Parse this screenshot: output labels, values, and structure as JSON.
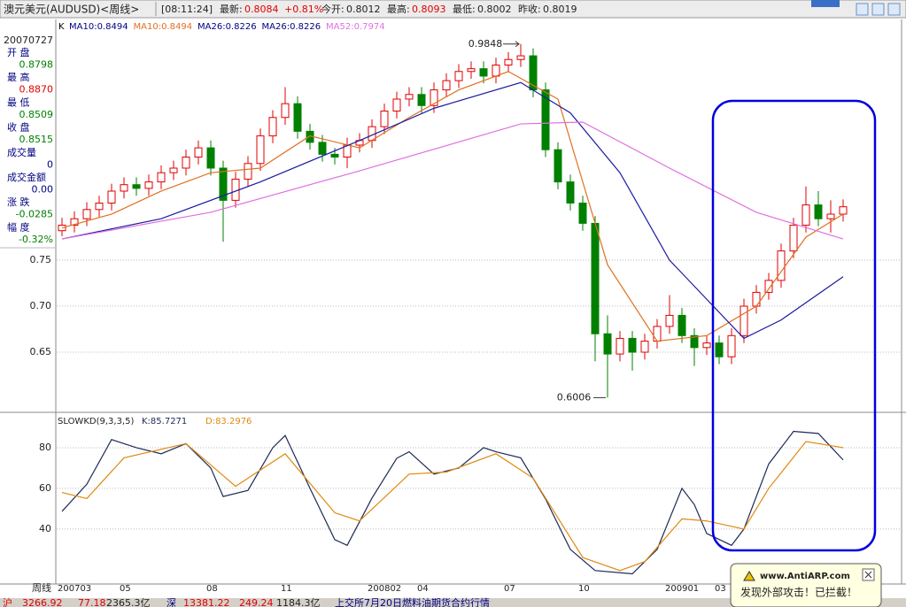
{
  "header": {
    "title": "澳元美元(AUDUSD)<周线>",
    "time": "[08:11:24]",
    "last_label": "最新:",
    "last": "0.8084",
    "change": "+0.81%",
    "open_label": "今开:",
    "open": "0.8012",
    "high_label": "最高:",
    "high": "0.8093",
    "low_label": "最低:",
    "low": "0.8002",
    "prev_label": "昨收:",
    "prev": "0.8019"
  },
  "info": {
    "date": "20070727",
    "rows": [
      {
        "label": "开 盘",
        "value": "0.8798",
        "color": "#008000"
      },
      {
        "label": "最 高",
        "value": "0.8870",
        "color": "#e00000"
      },
      {
        "label": "最 低",
        "value": "0.8509",
        "color": "#008000"
      },
      {
        "label": "收 盘",
        "value": "0.8515",
        "color": "#008000"
      },
      {
        "label": "成交量",
        "value": "0",
        "color": "#000080"
      },
      {
        "label": "成交金额",
        "value": "0.00",
        "color": "#000080"
      },
      {
        "label": "涨 跌",
        "value": "-0.0285",
        "color": "#008000"
      },
      {
        "label": "幅 度",
        "value": "-0.32%",
        "color": "#008000"
      }
    ]
  },
  "chart_data": [
    {
      "type": "candlestick",
      "legend": [
        "K",
        "MA10:0.8494",
        "MA10:0.8494",
        "MA26:0.8226",
        "MA26:0.8226",
        "MA52:0.7974"
      ],
      "legend_colors": [
        "#000000",
        "#000080",
        "#e07020",
        "#000080",
        "#000080",
        "#e070e0"
      ],
      "ylim": [
        0.5856,
        1.0115
      ],
      "yticks": [
        {
          "value": 0.75,
          "label": "0.75"
        },
        {
          "value": 0.7,
          "label": "0.70"
        },
        {
          "value": 0.65,
          "label": "0.65"
        }
      ],
      "grid": true,
      "up_color": "#e00000",
      "down_color": "#008000",
      "x_axis_label": "周线",
      "categories": [
        "200703",
        null,
        null,
        null,
        null,
        "05",
        null,
        null,
        null,
        null,
        null,
        null,
        "08",
        null,
        null,
        null,
        null,
        null,
        "11",
        null,
        null,
        null,
        null,
        null,
        null,
        "200802",
        null,
        null,
        null,
        "04",
        null,
        null,
        null,
        null,
        null,
        null,
        "07",
        null,
        null,
        null,
        null,
        null,
        "10",
        null,
        null,
        null,
        null,
        null,
        null,
        "200901",
        null,
        null,
        null,
        "03",
        null,
        null,
        null,
        null,
        null,
        null,
        null,
        null,
        null,
        null
      ],
      "candles": [
        [
          0.782,
          0.796,
          0.776,
          0.788
        ],
        [
          0.788,
          0.803,
          0.78,
          0.795
        ],
        [
          0.795,
          0.813,
          0.787,
          0.805
        ],
        [
          0.805,
          0.82,
          0.797,
          0.812
        ],
        [
          0.812,
          0.833,
          0.804,
          0.825
        ],
        [
          0.825,
          0.84,
          0.817,
          0.832
        ],
        [
          0.832,
          0.84,
          0.82,
          0.828
        ],
        [
          0.828,
          0.843,
          0.82,
          0.835
        ],
        [
          0.835,
          0.853,
          0.827,
          0.845
        ],
        [
          0.845,
          0.858,
          0.837,
          0.85
        ],
        [
          0.85,
          0.87,
          0.842,
          0.862
        ],
        [
          0.862,
          0.88,
          0.854,
          0.872
        ],
        [
          0.872,
          0.88,
          0.842,
          0.85
        ],
        [
          0.85,
          0.858,
          0.77,
          0.815
        ],
        [
          0.815,
          0.846,
          0.807,
          0.838
        ],
        [
          0.838,
          0.863,
          0.83,
          0.855
        ],
        [
          0.855,
          0.893,
          0.847,
          0.885
        ],
        [
          0.885,
          0.913,
          0.877,
          0.905
        ],
        [
          0.905,
          0.938,
          0.897,
          0.92
        ],
        [
          0.92,
          0.928,
          0.882,
          0.89
        ],
        [
          0.89,
          0.898,
          0.87,
          0.878
        ],
        [
          0.878,
          0.886,
          0.857,
          0.865
        ],
        [
          0.865,
          0.872,
          0.854,
          0.862
        ],
        [
          0.862,
          0.883,
          0.85,
          0.875
        ],
        [
          0.875,
          0.888,
          0.867,
          0.88
        ],
        [
          0.88,
          0.903,
          0.872,
          0.895
        ],
        [
          0.895,
          0.92,
          0.887,
          0.912
        ],
        [
          0.912,
          0.933,
          0.904,
          0.925
        ],
        [
          0.925,
          0.938,
          0.917,
          0.93
        ],
        [
          0.93,
          0.938,
          0.91,
          0.918
        ],
        [
          0.918,
          0.943,
          0.91,
          0.935
        ],
        [
          0.935,
          0.953,
          0.927,
          0.945
        ],
        [
          0.945,
          0.963,
          0.937,
          0.955
        ],
        [
          0.955,
          0.966,
          0.947,
          0.958
        ],
        [
          0.958,
          0.966,
          0.942,
          0.95
        ],
        [
          0.95,
          0.97,
          0.942,
          0.962
        ],
        [
          0.962,
          0.976,
          0.954,
          0.968
        ],
        [
          0.968,
          0.9848,
          0.96,
          0.972
        ],
        [
          0.972,
          0.98,
          0.927,
          0.935
        ],
        [
          0.935,
          0.943,
          0.862,
          0.87
        ],
        [
          0.87,
          0.878,
          0.827,
          0.835
        ],
        [
          0.835,
          0.843,
          0.804,
          0.812
        ],
        [
          0.812,
          0.82,
          0.782,
          0.79
        ],
        [
          0.79,
          0.798,
          0.64,
          0.67
        ],
        [
          0.67,
          0.69,
          0.6006,
          0.648
        ],
        [
          0.648,
          0.673,
          0.64,
          0.665
        ],
        [
          0.665,
          0.673,
          0.63,
          0.65
        ],
        [
          0.65,
          0.67,
          0.642,
          0.662
        ],
        [
          0.662,
          0.686,
          0.654,
          0.678
        ],
        [
          0.678,
          0.712,
          0.67,
          0.69
        ],
        [
          0.69,
          0.698,
          0.66,
          0.668
        ],
        [
          0.668,
          0.676,
          0.635,
          0.655
        ],
        [
          0.655,
          0.668,
          0.647,
          0.66
        ],
        [
          0.66,
          0.668,
          0.637,
          0.645
        ],
        [
          0.645,
          0.676,
          0.637,
          0.668
        ],
        [
          0.668,
          0.708,
          0.66,
          0.7
        ],
        [
          0.7,
          0.723,
          0.692,
          0.715
        ],
        [
          0.715,
          0.736,
          0.707,
          0.728
        ],
        [
          0.728,
          0.768,
          0.72,
          0.76
        ],
        [
          0.76,
          0.796,
          0.752,
          0.788
        ],
        [
          0.788,
          0.83,
          0.78,
          0.81
        ],
        [
          0.81,
          0.825,
          0.787,
          0.795
        ],
        [
          0.795,
          0.815,
          0.78,
          0.8
        ],
        [
          0.8,
          0.816,
          0.792,
          0.808
        ]
      ],
      "series": [
        {
          "name": "MA10",
          "color": "#e07020",
          "x": [
            0,
            4,
            8,
            12,
            16,
            20,
            24,
            28,
            32,
            36,
            40,
            44,
            48,
            52,
            56,
            60,
            63
          ],
          "values": [
            0.785,
            0.8,
            0.825,
            0.845,
            0.85,
            0.885,
            0.872,
            0.905,
            0.935,
            0.955,
            0.925,
            0.745,
            0.662,
            0.668,
            0.7,
            0.775,
            0.8
          ]
        },
        {
          "name": "MA26",
          "color": "#1a1aa0",
          "x": [
            0,
            8,
            16,
            24,
            30,
            37,
            41,
            45,
            49,
            55,
            58,
            63
          ],
          "values": [
            0.773,
            0.795,
            0.835,
            0.88,
            0.915,
            0.943,
            0.91,
            0.845,
            0.75,
            0.665,
            0.685,
            0.732
          ]
        },
        {
          "name": "MA52",
          "color": "#e070e0",
          "x": [
            0,
            12,
            24,
            37,
            42,
            49,
            56,
            63
          ],
          "values": [
            0.773,
            0.802,
            0.847,
            0.898,
            0.9,
            0.85,
            0.802,
            0.773
          ]
        }
      ],
      "annotations": [
        {
          "text": "0.9848"
        },
        {
          "text": "0.6006"
        }
      ]
    },
    {
      "type": "line",
      "title": "SLOWKD(9,3,3,5)",
      "k_label": "K:85.7271",
      "d_label": "D:83.2976",
      "ylim": [
        13,
        96.5
      ],
      "yticks": [
        80,
        60,
        40
      ],
      "grid": true,
      "series": [
        {
          "name": "K",
          "color": "#1c2a55",
          "x": [
            0,
            2,
            4,
            6,
            8,
            10,
            12,
            13,
            15,
            17,
            18,
            20,
            22,
            23,
            25,
            27,
            28,
            30,
            32,
            34,
            35,
            37,
            39,
            41,
            43,
            46,
            48,
            50,
            51,
            52,
            54,
            55,
            57,
            59,
            61,
            63
          ],
          "values": [
            48.7,
            62,
            84,
            80,
            77,
            82,
            70,
            56,
            59,
            80,
            86,
            60,
            34.8,
            32,
            55.2,
            74.8,
            78,
            67,
            70,
            80,
            78,
            75,
            54.8,
            30,
            19.6,
            18,
            30,
            60,
            52,
            37.8,
            32,
            40,
            72,
            88,
            87,
            74
          ]
        },
        {
          "name": "D",
          "color": "#e08a10",
          "x": [
            0,
            2,
            5,
            10,
            14,
            18,
            22,
            24,
            28,
            31,
            35,
            38,
            42,
            45,
            47,
            50,
            52,
            55,
            57,
            60,
            63
          ],
          "values": [
            58,
            55,
            75,
            82,
            61,
            77,
            48,
            44,
            67,
            68,
            77,
            65,
            26,
            19.6,
            24,
            45,
            44,
            40,
            60,
            83,
            80
          ]
        }
      ]
    }
  ],
  "status": {
    "sh": "沪",
    "sh_index": "3266.92",
    "sh_change": "77.18",
    "sh_amount": "2365.3亿",
    "sz": "深",
    "sz_index": "13381.22",
    "sz_change": "249.24",
    "sz_amount": "1184.3亿",
    "news": "上交所7月20日燃料油期货合约行情"
  },
  "popup": {
    "site": "www.AntiARP.com",
    "message": "发现外部攻击！已拦截！"
  }
}
